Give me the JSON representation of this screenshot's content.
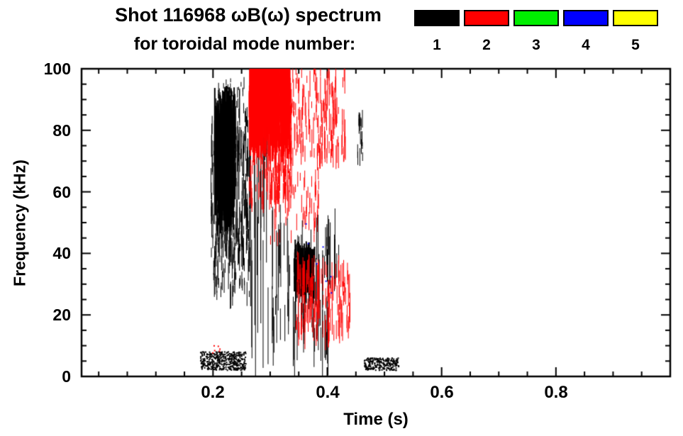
{
  "title": {
    "line1": "Shot 116968 ωB(ω) spectrum",
    "line2": "for toroidal mode number:"
  },
  "legend": {
    "items": [
      {
        "label": "1",
        "color": "#000000"
      },
      {
        "label": "2",
        "color": "#ff0000"
      },
      {
        "label": "3",
        "color": "#00ee00"
      },
      {
        "label": "4",
        "color": "#0000ff"
      },
      {
        "label": "5",
        "color": "#ffff00"
      }
    ]
  },
  "chart_data": {
    "type": "scatter",
    "title": "Shot 116968 ωB(ω) spectrum for toroidal mode number: 1-5",
    "xlabel": "Time (s)",
    "ylabel": "Frequency (kHz)",
    "xlim": [
      -0.03,
      1.0
    ],
    "ylim": [
      0,
      100
    ],
    "x_ticks": [
      0.2,
      0.4,
      0.6,
      0.8
    ],
    "x_tick_labels": [
      "0.2",
      "0.4",
      "0.6",
      "0.8"
    ],
    "x_minor_step": 0.05,
    "y_ticks": [
      0,
      20,
      40,
      60,
      80,
      100
    ],
    "y_tick_labels": [
      "0",
      "20",
      "40",
      "60",
      "80",
      "100"
    ],
    "y_minor_step": 5,
    "grid": false,
    "legend_position": "top-right",
    "frame_color": "#000000",
    "clusters": [
      {
        "name": "black-main-blob-core",
        "mode": 1,
        "color": "#000000",
        "t": [
          0.203,
          0.238
        ],
        "f": [
          55,
          86
        ],
        "style": "vstreak",
        "count": 430,
        "len": [
          3,
          18
        ],
        "w": 2
      },
      {
        "name": "black-main-blob",
        "mode": 1,
        "color": "#000000",
        "t": [
          0.196,
          0.262
        ],
        "f": [
          40,
          88
        ],
        "style": "vstreak",
        "count": 260,
        "len": [
          2,
          12
        ],
        "w": 1
      },
      {
        "name": "black-blob-tails",
        "mode": 1,
        "color": "#000000",
        "t": [
          0.2,
          0.265
        ],
        "f": [
          26,
          52
        ],
        "style": "vstreak",
        "count": 115,
        "len": [
          2,
          9
        ],
        "w": 1
      },
      {
        "name": "black-top-specks",
        "mode": 1,
        "color": "#000000",
        "t": [
          0.205,
          0.255
        ],
        "f": [
          86,
          97
        ],
        "style": "vstreak",
        "count": 35,
        "len": [
          1,
          4
        ],
        "w": 1
      },
      {
        "name": "black-tall-lines",
        "mode": 1,
        "color": "#000000",
        "t": [
          0.262,
          0.295
        ],
        "f": [
          20,
          95
        ],
        "style": "vstreak",
        "count": 22,
        "len": [
          30,
          75
        ],
        "w": 1
      },
      {
        "name": "red-top-dense",
        "mode": 2,
        "color": "#ff0000",
        "t": [
          0.263,
          0.335
        ],
        "f": [
          76,
          102
        ],
        "style": "vstreak",
        "count": 520,
        "len": [
          3,
          16
        ],
        "w": 2
      },
      {
        "name": "red-upper-streaks",
        "mode": 2,
        "color": "#ff0000",
        "t": [
          0.263,
          0.34
        ],
        "f": [
          55,
          80
        ],
        "style": "vstreak",
        "count": 150,
        "len": [
          2,
          10
        ],
        "w": 1
      },
      {
        "name": "red-arc-sparse",
        "mode": 2,
        "color": "#ff0000",
        "t": [
          0.335,
          0.432
        ],
        "f": [
          70,
          101
        ],
        "style": "vstreak",
        "count": 170,
        "len": [
          2,
          9
        ],
        "w": 1
      },
      {
        "name": "red-mid-sparse",
        "mode": 2,
        "color": "#ff0000",
        "t": [
          0.3,
          0.385
        ],
        "f": [
          44,
          66
        ],
        "style": "vstreak",
        "count": 70,
        "len": [
          2,
          6
        ],
        "w": 1
      },
      {
        "name": "black-mid-striations",
        "mode": 1,
        "color": "#000000",
        "t": [
          0.295,
          0.42
        ],
        "f": [
          9,
          46
        ],
        "style": "vstreak",
        "count": 95,
        "len": [
          6,
          26
        ],
        "w": 1
      },
      {
        "name": "black-mid-blob",
        "mode": 1,
        "color": "#000000",
        "t": [
          0.342,
          0.378
        ],
        "f": [
          27,
          41
        ],
        "style": "vstreak",
        "count": 160,
        "len": [
          2,
          8
        ],
        "w": 2
      },
      {
        "name": "red-low-striations",
        "mode": 2,
        "color": "#ff0000",
        "t": [
          0.345,
          0.44
        ],
        "f": [
          13,
          36
        ],
        "style": "vstreak",
        "count": 150,
        "len": [
          3,
          11
        ],
        "w": 1
      },
      {
        "name": "black-right-streak",
        "mode": 1,
        "color": "#000000",
        "t": [
          0.452,
          0.462
        ],
        "f": [
          70,
          86
        ],
        "style": "vstreak",
        "count": 18,
        "len": [
          2,
          6
        ],
        "w": 1
      },
      {
        "name": "black-lowfreq-left",
        "mode": 1,
        "color": "#000000",
        "t": [
          0.178,
          0.258
        ],
        "f": [
          2,
          8
        ],
        "style": "dots",
        "count": 430,
        "w": 2
      },
      {
        "name": "black-lowfreq-right",
        "mode": 1,
        "color": "#000000",
        "t": [
          0.465,
          0.525
        ],
        "f": [
          2,
          6
        ],
        "style": "dots",
        "count": 240,
        "w": 2
      },
      {
        "name": "red-specks-low",
        "mode": 2,
        "color": "#ff0000",
        "t": [
          0.19,
          0.215
        ],
        "f": [
          7,
          10
        ],
        "style": "dots",
        "count": 6,
        "w": 2
      },
      {
        "name": "blue-specks",
        "mode": 4,
        "color": "#0000ff",
        "t": [
          0.355,
          0.41
        ],
        "f": [
          26,
          50
        ],
        "style": "dots",
        "count": 7,
        "w": 2
      }
    ]
  }
}
